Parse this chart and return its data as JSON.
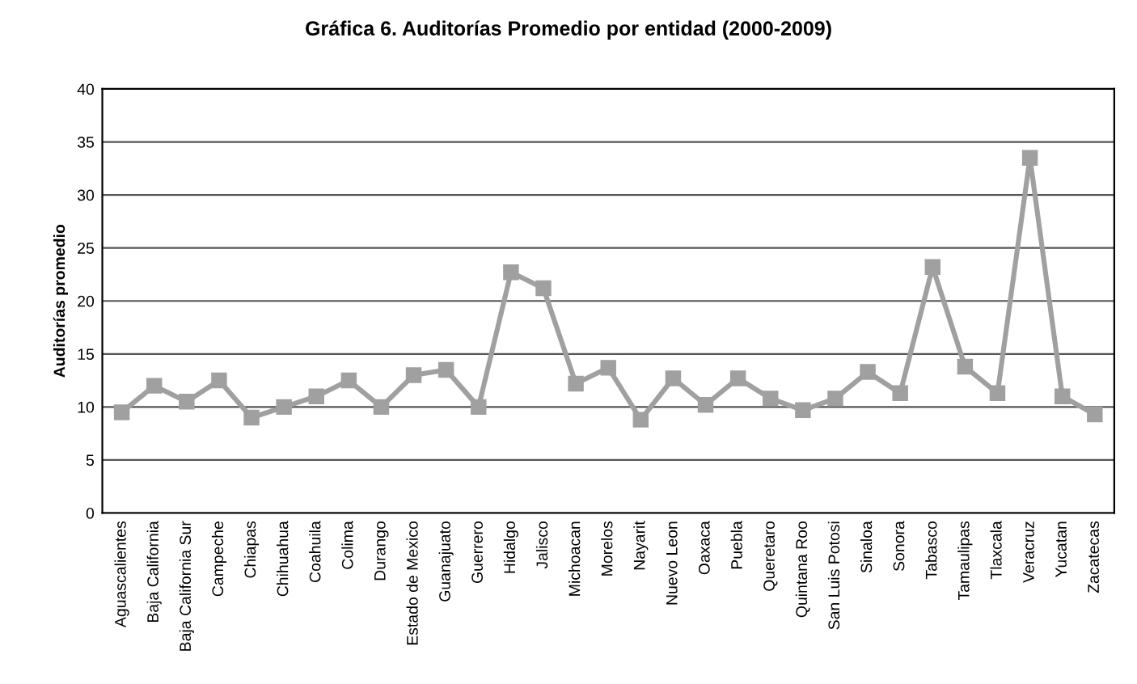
{
  "chart_data": {
    "type": "line",
    "title": "Gráfica 6. Auditorías Promedio por entidad (2000-2009)",
    "ylabel": "Auditorías promedio",
    "categories": [
      "Aguascalientes",
      "Baja California",
      "Baja California Sur",
      "Campeche",
      "Chiapas",
      "Chihuahua",
      "Coahuila",
      "Colima",
      "Durango",
      "Estado de Mexico",
      "Guanajuato",
      "Guerrero",
      "Hidalgo",
      "Jalisco",
      "Michoacan",
      "Morelos",
      "Nayarit",
      "Nuevo Leon",
      "Oaxaca",
      "Puebla",
      "Queretaro",
      "Quintana Roo",
      "San Luis Potosi",
      "Sinaloa",
      "Sonora",
      "Tabasco",
      "Tamaulipas",
      "Tlaxcala",
      "Veracruz",
      "Yucatan",
      "Zacatecas"
    ],
    "series": [
      {
        "color": "#a0a0a0",
        "values": [
          9.5,
          12,
          10.5,
          12.5,
          9,
          10,
          11,
          12.5,
          10,
          13,
          13.5,
          10,
          22.7,
          21.2,
          12.2,
          13.7,
          8.8,
          12.7,
          10.2,
          12.7,
          10.8,
          9.7,
          10.8,
          13.3,
          11.3,
          23.2,
          13.8,
          11.3,
          33.5,
          11,
          9.3
        ]
      }
    ],
    "ylim": [
      0,
      40
    ],
    "yticks": [
      0,
      5,
      10,
      15,
      20,
      25,
      30,
      35,
      40
    ],
    "grid": "y",
    "marker": "square",
    "line_style": "solid"
  }
}
